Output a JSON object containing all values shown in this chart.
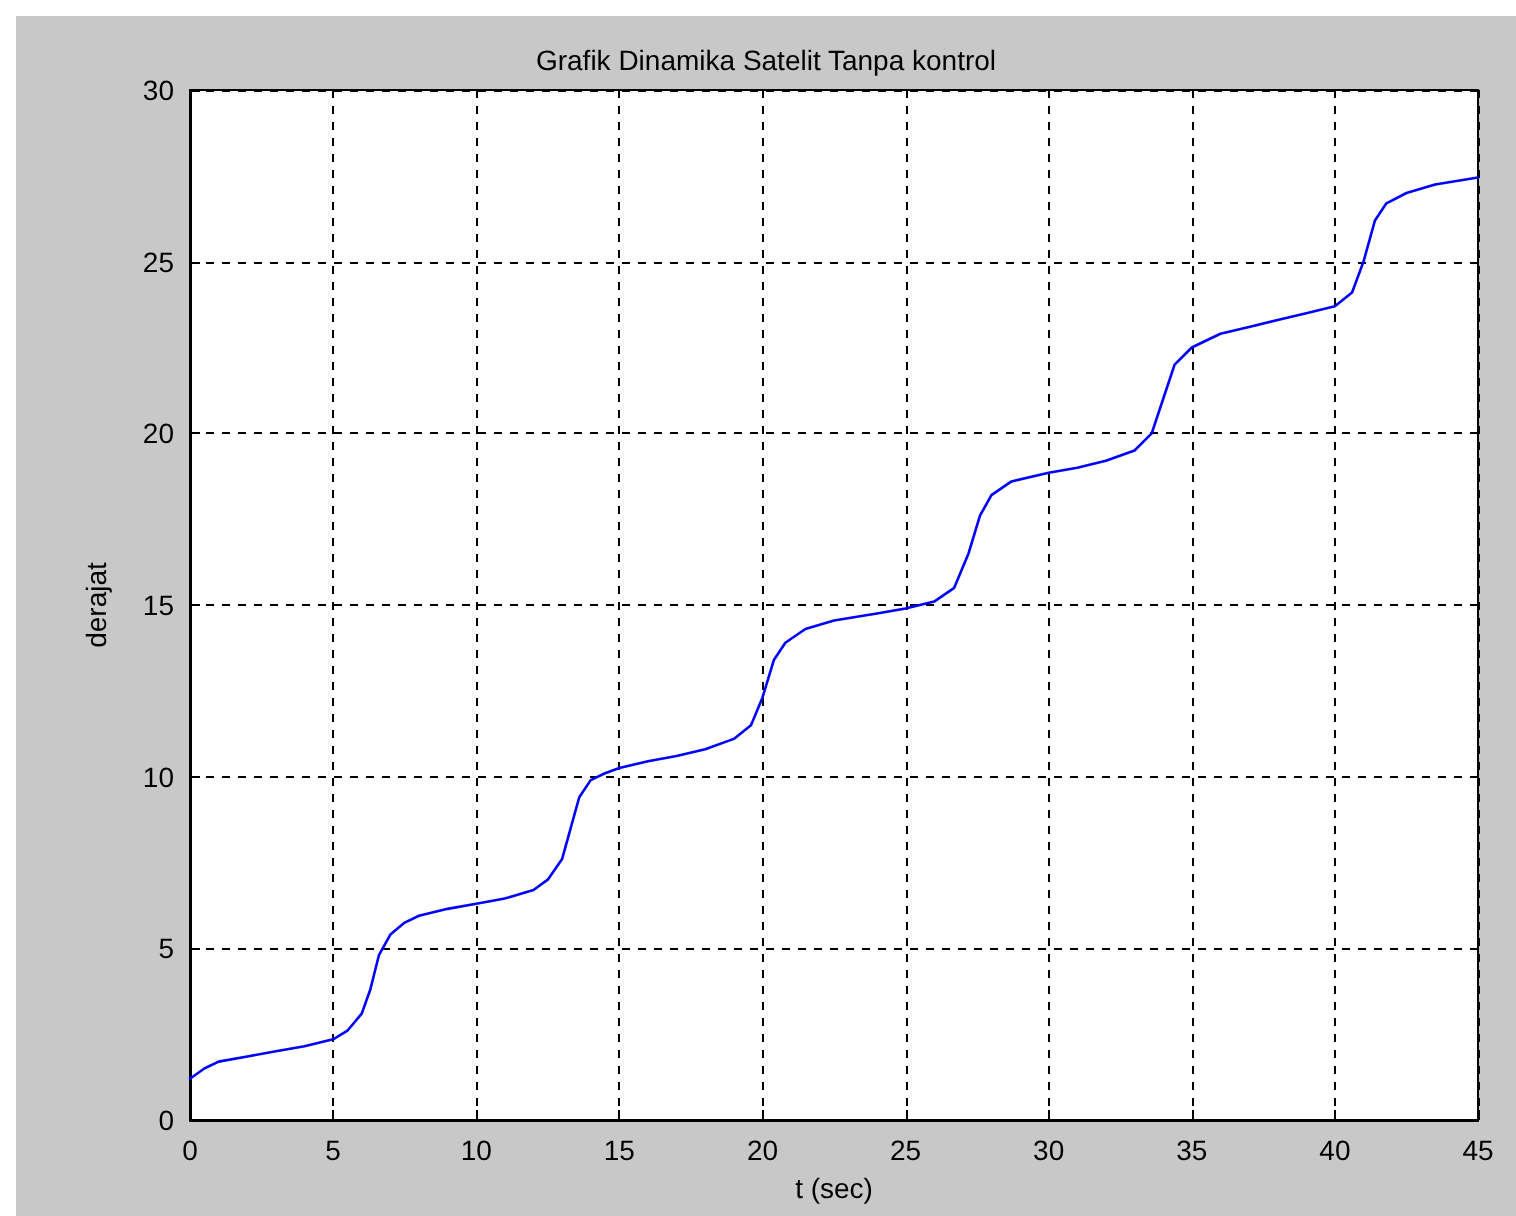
{
  "chart_data": {
    "type": "line",
    "title": "Grafik Dinamika Satelit Tanpa kontrol",
    "xlabel": "t (sec)",
    "ylabel": "derajat",
    "xlim": [
      0,
      45
    ],
    "xticks": [
      0,
      5,
      10,
      15,
      20,
      25,
      30,
      35,
      40,
      45
    ],
    "ylim": [
      0,
      30
    ],
    "yticks": [
      0,
      5,
      10,
      15,
      20,
      25,
      30
    ],
    "grid": true,
    "line_style": "solid",
    "marker": "none",
    "series": [
      {
        "color": "#0000ff",
        "x": [
          0,
          0.5,
          1,
          2,
          3,
          4,
          5,
          5.5,
          6,
          6.3,
          6.6,
          7,
          7.5,
          8,
          9,
          10,
          11,
          12,
          12.5,
          13,
          13.3,
          13.6,
          14,
          14.5,
          15,
          16,
          17,
          18,
          19,
          19.6,
          20,
          20.4,
          20.8,
          21.5,
          22.5,
          24,
          25,
          26,
          26.7,
          27.2,
          27.6,
          28,
          28.7,
          30,
          31,
          32,
          33,
          33.6,
          34,
          34.4,
          35,
          36,
          37,
          38,
          39,
          40,
          40.6,
          41,
          41.4,
          41.8,
          42.5,
          43.5,
          45
        ],
        "values": [
          1.2,
          1.5,
          1.7,
          1.85,
          2.0,
          2.15,
          2.35,
          2.6,
          3.1,
          3.8,
          4.8,
          5.4,
          5.75,
          5.95,
          6.15,
          6.3,
          6.45,
          6.7,
          7.0,
          7.6,
          8.5,
          9.4,
          9.9,
          10.1,
          10.25,
          10.45,
          10.6,
          10.8,
          11.1,
          11.5,
          12.3,
          13.4,
          13.9,
          14.3,
          14.55,
          14.75,
          14.9,
          15.1,
          15.5,
          16.5,
          17.6,
          18.2,
          18.6,
          18.85,
          19.0,
          19.2,
          19.5,
          20.0,
          21.0,
          22.0,
          22.5,
          22.9,
          23.1,
          23.3,
          23.5,
          23.7,
          24.1,
          25.0,
          26.2,
          26.7,
          27.0,
          27.25,
          27.45
        ]
      }
    ]
  }
}
